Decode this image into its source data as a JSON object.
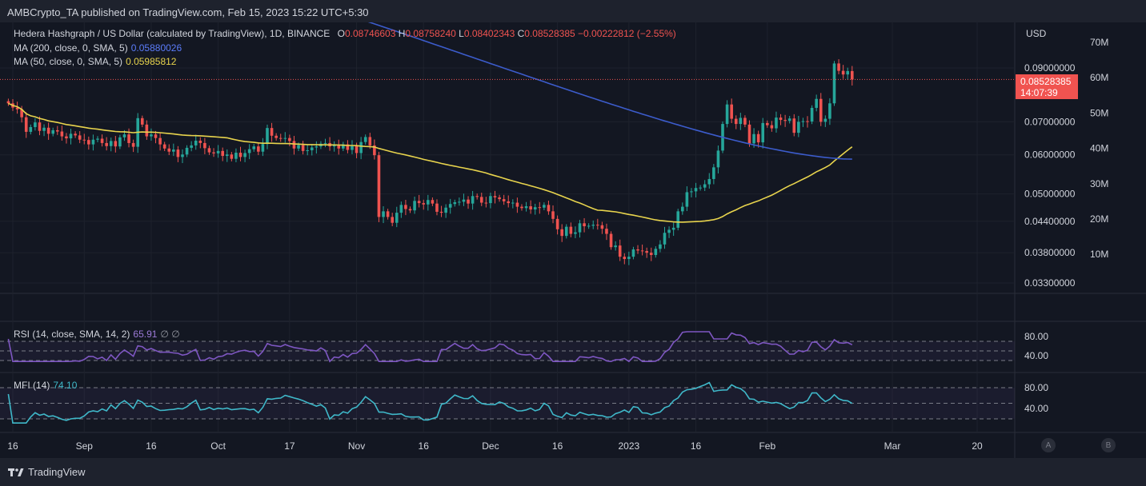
{
  "header": {
    "published": "AMBCrypto_TA published on TradingView.com, Feb 15, 2023 15:22 UTC+5:30"
  },
  "legend": {
    "symbol": "Hedera Hashgraph / US Dollar (calculated by TradingView), 1D, BINANCE",
    "ohlc": {
      "o_label": "O",
      "o": "0.08746603",
      "h_label": "H",
      "h": "0.08758240",
      "l_label": "L",
      "l": "0.08402343",
      "c_label": "C",
      "c": "0.08528385",
      "change": "−0.00222812 (−2.55%)"
    },
    "ma200": {
      "label": "MA (200, close, 0, SMA, 5)",
      "value": "0.05880026"
    },
    "ma50": {
      "label": "MA (50, close, 0, SMA, 5)",
      "value": "0.05985812"
    },
    "rsi": {
      "label": "RSI (14, close, SMA, 14, 2)",
      "value": "65.91",
      "extra": "∅ ∅"
    },
    "mfi": {
      "label": "MFI (14)",
      "value": "74.10"
    }
  },
  "price_tag": {
    "price": "0.08528385",
    "countdown": "14:07:39"
  },
  "footer": {
    "brand": "TradingView"
  },
  "scale_buttons": [
    "A",
    "B"
  ],
  "colors": {
    "background": "#131722",
    "up": "#26a69a",
    "down": "#ef5350",
    "ma200": "#3c5ccc",
    "ma50": "#e8d44d",
    "rsi": "#7e57c2",
    "mfi": "#3fb8c9",
    "price_tag": "#f05350"
  },
  "chart_data": {
    "type": "candlestick",
    "currency": "USD",
    "price_axis": {
      "ticks": [
        "0.09000000",
        "0.07000000",
        "0.06000000",
        "0.05000000",
        "0.04400000",
        "0.03800000",
        "0.03300000"
      ],
      "tick_values": [
        0.09,
        0.07,
        0.06,
        0.05,
        0.044,
        0.038,
        0.033
      ],
      "scale": "log",
      "ylim": [
        0.0315,
        0.102
      ]
    },
    "volume_axis": {
      "ticks": [
        "70M",
        "60M",
        "50M",
        "40M",
        "30M",
        "20M",
        "10M"
      ],
      "tick_values": [
        70,
        60,
        50,
        40,
        30,
        20,
        10
      ]
    },
    "x_axis": {
      "ticks": [
        "16",
        "Sep",
        "16",
        "Oct",
        "17",
        "Nov",
        "16",
        "Dec",
        "16",
        "2023",
        "16",
        "Feb",
        "Mar",
        "20"
      ],
      "tick_dates": [
        "2022-08-16",
        "2022-09-01",
        "2022-09-16",
        "2022-10-01",
        "2022-10-17",
        "2022-11-01",
        "2022-11-16",
        "2022-12-01",
        "2022-12-16",
        "2023-01-01",
        "2023-01-16",
        "2023-02-01",
        "2023-03-01",
        "2023-03-20"
      ],
      "xlim": [
        "2022-08-15",
        "2023-03-26"
      ]
    },
    "series": [
      {
        "name": "Hedera Hashgraph / US Dollar",
        "kind": "candles",
        "start_date": "2022-08-15",
        "close": [
          0.0763,
          0.0748,
          0.0742,
          0.0715,
          0.0668,
          0.0683,
          0.0698,
          0.0671,
          0.0681,
          0.0662,
          0.0673,
          0.0669,
          0.0654,
          0.0648,
          0.0662,
          0.0657,
          0.0644,
          0.0643,
          0.063,
          0.0644,
          0.0647,
          0.0634,
          0.0625,
          0.064,
          0.0624,
          0.0651,
          0.066,
          0.0634,
          0.0623,
          0.0712,
          0.0691,
          0.0654,
          0.066,
          0.0649,
          0.063,
          0.0618,
          0.0609,
          0.0615,
          0.0594,
          0.0601,
          0.062,
          0.0627,
          0.0641,
          0.0634,
          0.0619,
          0.0607,
          0.0604,
          0.0611,
          0.0597,
          0.0601,
          0.0589,
          0.0606,
          0.0594,
          0.0605,
          0.0616,
          0.0624,
          0.0609,
          0.0631,
          0.068,
          0.0656,
          0.0649,
          0.0648,
          0.0649,
          0.064,
          0.0618,
          0.0628,
          0.0611,
          0.0613,
          0.0621,
          0.0624,
          0.0632,
          0.0634,
          0.0624,
          0.0629,
          0.0618,
          0.063,
          0.0614,
          0.0625,
          0.0605,
          0.0637,
          0.0652,
          0.0627,
          0.0599,
          0.0449,
          0.0461,
          0.0449,
          0.0437,
          0.0458,
          0.0475,
          0.0466,
          0.0463,
          0.0484,
          0.0479,
          0.0476,
          0.0486,
          0.0478,
          0.046,
          0.0458,
          0.0469,
          0.0477,
          0.0481,
          0.0482,
          0.0487,
          0.0478,
          0.0495,
          0.0493,
          0.048,
          0.0479,
          0.0495,
          0.0492,
          0.0488,
          0.0483,
          0.0479,
          0.048,
          0.0471,
          0.0468,
          0.0472,
          0.0465,
          0.047,
          0.0469,
          0.0475,
          0.0461,
          0.0445,
          0.0424,
          0.0411,
          0.0429,
          0.0415,
          0.0418,
          0.0436,
          0.043,
          0.0431,
          0.0433,
          0.0432,
          0.0425,
          0.0415,
          0.039,
          0.0393,
          0.0373,
          0.0369,
          0.0373,
          0.0386,
          0.0384,
          0.0383,
          0.038,
          0.0376,
          0.0387,
          0.0395,
          0.0417,
          0.0423,
          0.0427,
          0.0461,
          0.0471,
          0.0504,
          0.0506,
          0.0514,
          0.0515,
          0.0523,
          0.0536,
          0.0566,
          0.0612,
          0.0693,
          0.0759,
          0.071,
          0.0693,
          0.0713,
          0.0691,
          0.0633,
          0.0661,
          0.0636,
          0.0696,
          0.0689,
          0.0679,
          0.0714,
          0.0706,
          0.0703,
          0.0711,
          0.0665,
          0.07,
          0.0702,
          0.0701,
          0.0747,
          0.0779,
          0.07,
          0.071,
          0.0763,
          0.0919,
          0.0888,
          0.0873,
          0.0887,
          0.0853
        ]
      },
      {
        "name": "MA (200, close, 0, SMA, 5)",
        "kind": "line",
        "last": 0.05880026
      },
      {
        "name": "MA (50, close, 0, SMA, 5)",
        "kind": "line",
        "last": 0.05985812
      }
    ],
    "indicators": [
      {
        "name": "RSI (14, close, SMA, 14, 2)",
        "last": 65.91,
        "ticks": [
          "80.00",
          "40.00"
        ],
        "tick_values": [
          80,
          40
        ],
        "ylim": [
          20,
          95
        ]
      },
      {
        "name": "MFI (14)",
        "last": 74.1,
        "ticks": [
          "80.00",
          "40.00"
        ],
        "tick_values": [
          80,
          40
        ],
        "ylim": [
          0,
          100
        ]
      }
    ]
  }
}
